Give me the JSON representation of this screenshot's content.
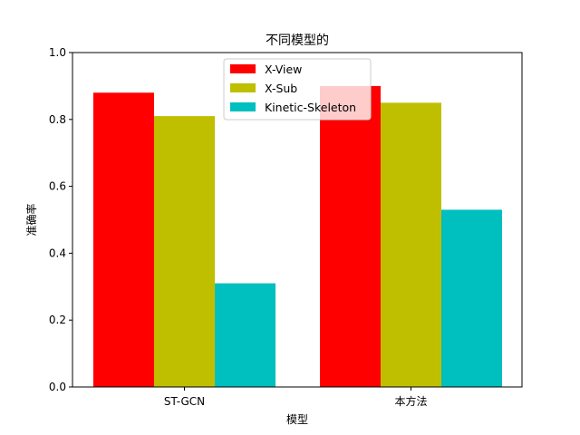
{
  "chart_data": {
    "type": "bar",
    "title": "不同模型的",
    "xlabel": "模型",
    "ylabel": "准确率",
    "categories": [
      "ST-GCN",
      "本方法"
    ],
    "series": [
      {
        "name": "X-View",
        "color": "#ff0000",
        "values": [
          0.88,
          0.9
        ]
      },
      {
        "name": "X-Sub",
        "color": "#bfbf00",
        "values": [
          0.81,
          0.85
        ]
      },
      {
        "name": "Kinetic-Skeleton",
        "color": "#00bfbf",
        "values": [
          0.31,
          0.53
        ]
      }
    ],
    "ylim": [
      0,
      1.0
    ],
    "yticks": [
      "0.0",
      "0.2",
      "0.4",
      "0.6",
      "0.8",
      "1.0"
    ],
    "grid": false,
    "legend": "top-center"
  }
}
